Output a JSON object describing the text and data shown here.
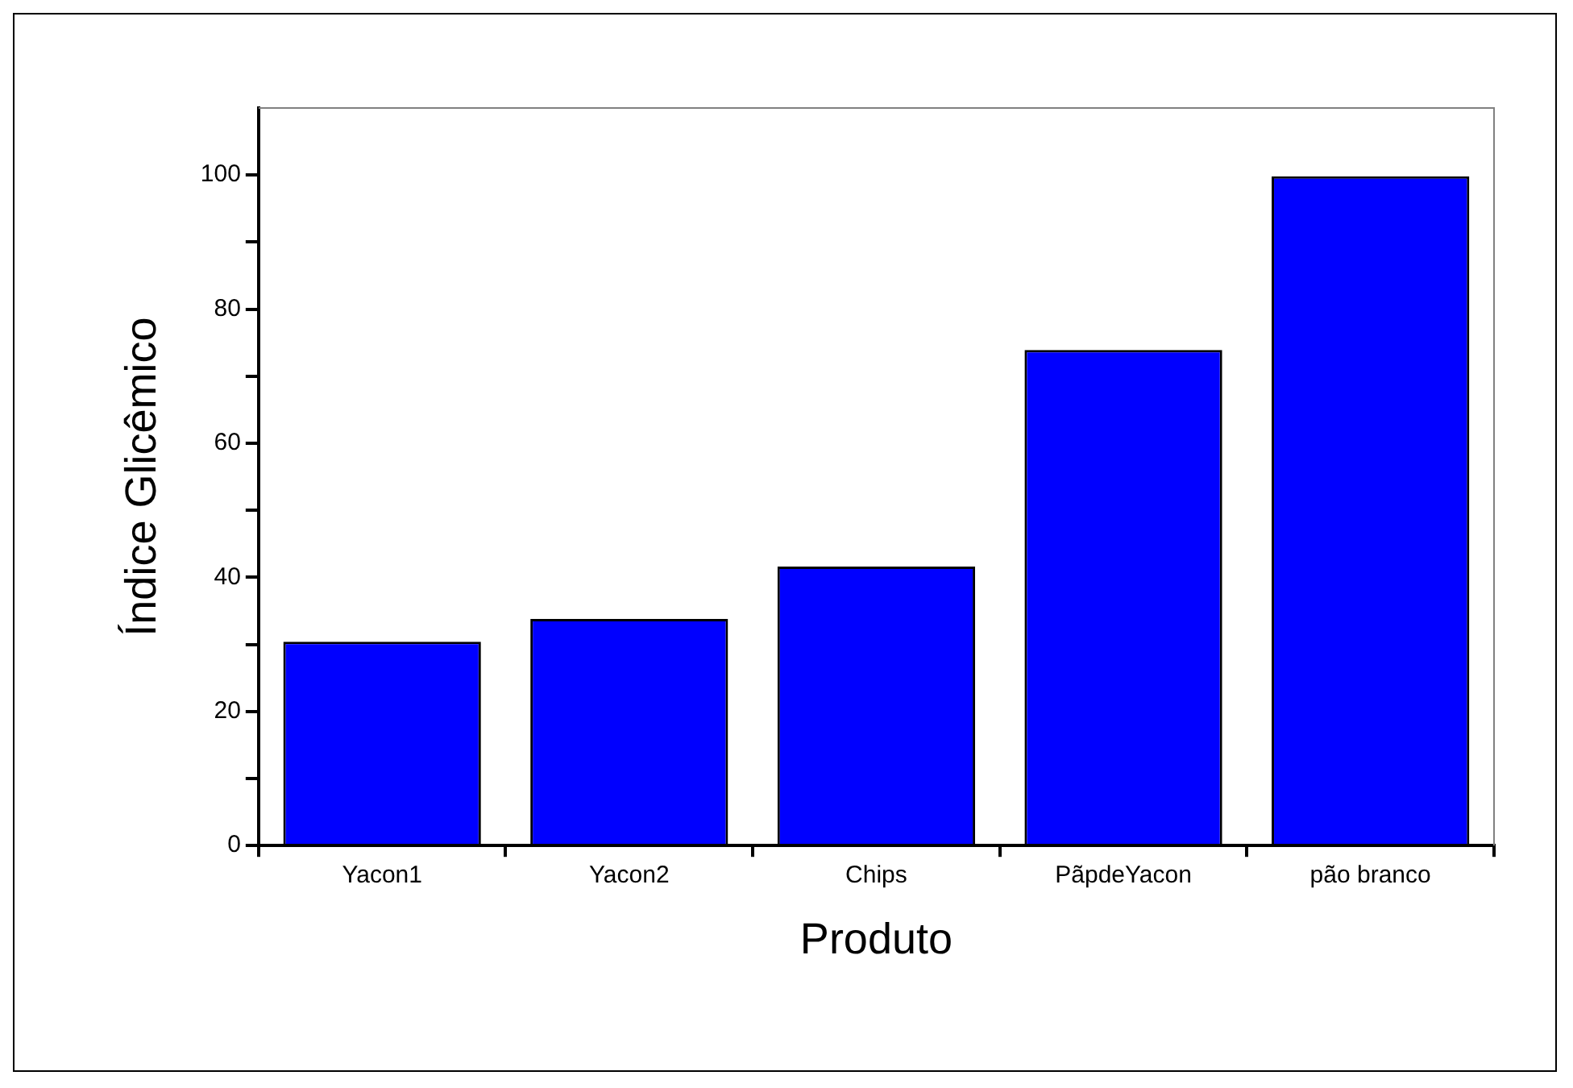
{
  "chart_data": {
    "type": "bar",
    "xlabel": "Produto",
    "ylabel": "Índice Glicêmico",
    "categories": [
      "Yacon1",
      "Yacon2",
      "Chips",
      "PãpdeYacon",
      "pão branco"
    ],
    "values": [
      30.4,
      33.8,
      41.6,
      73.9,
      99.8
    ],
    "color": "#0000ff",
    "ylim": [
      0,
      110
    ],
    "yticks": [
      0,
      {
        "value": 10,
        "label": null
      },
      20,
      {
        "value": 30,
        "label": null
      },
      40,
      {
        "value": 50,
        "label": null
      },
      60,
      {
        "value": 70,
        "label": null
      },
      80,
      {
        "value": 90,
        "label": null
      },
      100
    ],
    "grid": false,
    "legend": false
  }
}
